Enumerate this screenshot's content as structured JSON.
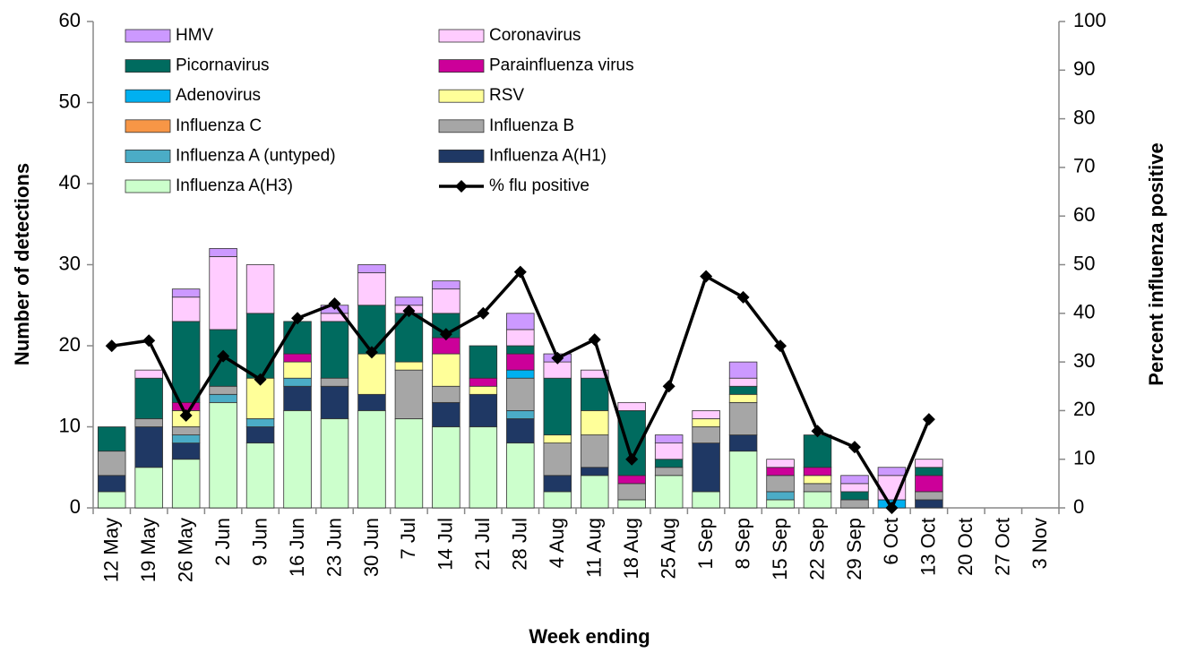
{
  "chart_data": {
    "type": "bar",
    "stacked": true,
    "x_label": "Week ending",
    "y_label": "Number of detections",
    "y2_label": "Percent influenza positive",
    "categories": [
      "12 May",
      "19 May",
      "26 May",
      "2 Jun",
      "9 Jun",
      "16 Jun",
      "23 Jun",
      "30 Jun",
      "7 Jul",
      "14 Jul",
      "21 Jul",
      "28 Jul",
      "4 Aug",
      "11 Aug",
      "18 Aug",
      "25 Aug",
      "1 Sep",
      "8 Sep",
      "15 Sep",
      "22 Sep",
      "29 Sep",
      "6 Oct",
      "13 Oct",
      "20 Oct",
      "27 Oct",
      "3 Nov"
    ],
    "ylim": [
      0,
      60
    ],
    "yticks": [
      0,
      10,
      20,
      30,
      40,
      50,
      60
    ],
    "y2lim": [
      0,
      100
    ],
    "y2ticks": [
      0,
      10,
      20,
      30,
      40,
      50,
      60,
      70,
      80,
      90,
      100
    ],
    "series": [
      {
        "name": "Influenza A(H3)",
        "color": "#ccffcc",
        "values": [
          2,
          5,
          6,
          13,
          8,
          12,
          11,
          12,
          11,
          10,
          10,
          8,
          2,
          4,
          1,
          4,
          2,
          7,
          1,
          2,
          0,
          0,
          0,
          0,
          0,
          0
        ]
      },
      {
        "name": "Influenza A(H1)",
        "color": "#1f3864",
        "values": [
          2,
          5,
          2,
          0,
          2,
          3,
          4,
          2,
          0,
          3,
          4,
          3,
          2,
          1,
          0,
          0,
          6,
          2,
          0,
          0,
          0,
          0,
          1,
          0,
          0,
          0
        ]
      },
      {
        "name": "Influenza A (untyped)",
        "color": "#4bacc6",
        "values": [
          0,
          0,
          1,
          1,
          1,
          1,
          0,
          0,
          0,
          0,
          0,
          1,
          0,
          0,
          0,
          0,
          0,
          0,
          1,
          0,
          0,
          0,
          0,
          0,
          0,
          0
        ]
      },
      {
        "name": "Influenza B",
        "color": "#a6a6a6",
        "values": [
          3,
          1,
          1,
          1,
          0,
          0,
          1,
          0,
          6,
          2,
          0,
          4,
          4,
          4,
          2,
          1,
          2,
          4,
          2,
          1,
          1,
          0,
          1,
          0,
          0,
          0
        ]
      },
      {
        "name": "Influenza C",
        "color": "#f79646",
        "values": [
          0,
          0,
          0,
          0,
          0,
          0,
          0,
          0,
          0,
          0,
          0,
          0,
          0,
          0,
          0,
          0,
          0,
          0,
          0,
          0,
          0,
          0,
          0,
          0,
          0,
          0
        ]
      },
      {
        "name": "RSV",
        "color": "#ffff99",
        "values": [
          0,
          0,
          2,
          0,
          5,
          2,
          0,
          5,
          1,
          4,
          1,
          0,
          1,
          3,
          0,
          0,
          1,
          1,
          0,
          1,
          0,
          0,
          0,
          0,
          0,
          0
        ]
      },
      {
        "name": "Adenovirus",
        "color": "#00b0f0",
        "values": [
          0,
          0,
          0,
          0,
          0,
          0,
          0,
          0,
          0,
          0,
          0,
          1,
          0,
          0,
          0,
          0,
          0,
          0,
          0,
          0,
          0,
          1,
          0,
          0,
          0,
          0
        ]
      },
      {
        "name": "Parainfluenza virus",
        "color": "#cc0099",
        "values": [
          0,
          0,
          1,
          0,
          0,
          1,
          0,
          0,
          0,
          2,
          1,
          2,
          0,
          0,
          1,
          0,
          0,
          0,
          1,
          1,
          0,
          0,
          2,
          0,
          0,
          0
        ]
      },
      {
        "name": "Picornavirus",
        "color": "#006b5f",
        "values": [
          3,
          5,
          10,
          7,
          8,
          4,
          7,
          6,
          6,
          3,
          4,
          1,
          7,
          4,
          8,
          1,
          0,
          1,
          0,
          4,
          1,
          0,
          1,
          0,
          0,
          0
        ]
      },
      {
        "name": "Coronavirus",
        "color": "#ffccff",
        "values": [
          0,
          1,
          3,
          9,
          6,
          0,
          1,
          4,
          1,
          3,
          0,
          2,
          2,
          1,
          1,
          2,
          1,
          1,
          1,
          0,
          1,
          3,
          1,
          0,
          0,
          0
        ]
      },
      {
        "name": "HMV",
        "color": "#cc99ff",
        "values": [
          0,
          0,
          1,
          1,
          0,
          0,
          1,
          1,
          1,
          1,
          0,
          2,
          1,
          0,
          0,
          1,
          0,
          2,
          0,
          0,
          1,
          1,
          0,
          0,
          0,
          0
        ]
      },
      {
        "name": "% flu positive",
        "color": "#000000",
        "type": "line",
        "axis": "y2",
        "values": [
          33.3,
          34.4,
          19,
          31.2,
          26.4,
          39,
          42,
          32,
          40.5,
          35.7,
          40,
          48.5,
          30.8,
          34.6,
          10,
          25,
          47.6,
          43.3,
          33.3,
          15.8,
          12.5,
          0,
          18.2,
          null,
          null,
          null
        ]
      }
    ]
  }
}
